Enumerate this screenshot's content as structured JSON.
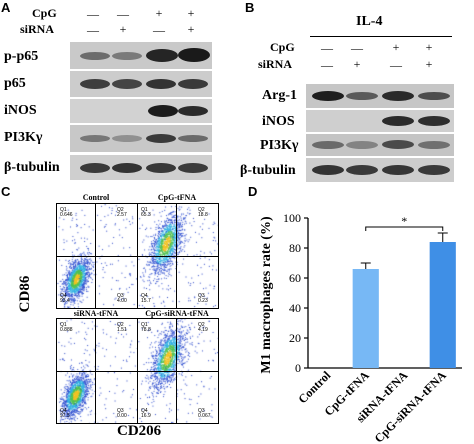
{
  "panels": {
    "a": "A",
    "b": "B",
    "c": "C",
    "d": "D"
  },
  "panel_a": {
    "conditions": [
      {
        "label": "CpG",
        "values": [
          "—",
          "—",
          "+",
          "+"
        ]
      },
      {
        "label": "siRNA",
        "values": [
          "—",
          "+",
          "—",
          "+"
        ]
      }
    ],
    "blots": [
      "p-p65",
      "p65",
      "iNOS",
      "PI3Kγ",
      "β-tubulin"
    ]
  },
  "panel_b": {
    "title": "IL-4",
    "conditions": [
      {
        "label": "CpG",
        "values": [
          "—",
          "—",
          "+",
          "+"
        ]
      },
      {
        "label": "siRNA",
        "values": [
          "—",
          "+",
          "—",
          "+"
        ]
      }
    ],
    "blots": [
      "Arg-1",
      "iNOS",
      "PI3Kγ",
      "β-tubulin"
    ]
  },
  "panel_c": {
    "y_axis": "CD86",
    "x_axis": "CD206",
    "plots": [
      {
        "title": "Control",
        "q1": "Q1",
        "q1v": "0.646",
        "q2": "Q2",
        "q2v": "2.57",
        "q3": "Q3",
        "q3v": "4.00",
        "q4": "Q4",
        "q4v": "93.4"
      },
      {
        "title": "CpG-tFNA",
        "q1": "Q1",
        "q1v": "65.3",
        "q2": "Q2",
        "q2v": "18.8",
        "q3": "Q3",
        "q3v": "0.23",
        "q4": "Q4",
        "q4v": "15.7"
      },
      {
        "title": "siRNA-tFNA",
        "q1": "Q1",
        "q1v": "0.888",
        "q2": "Q2",
        "q2v": "1.51",
        "q3": "Q3",
        "q3v": "0.00",
        "q4": "Q4",
        "q4v": "97.5"
      },
      {
        "title": "CpG-siRNA-tFNA",
        "q1": "Q1",
        "q1v": "78.8",
        "q2": "Q2",
        "q2v": "4.19",
        "q3": "Q3",
        "q3v": "0.067",
        "q4": "Q4",
        "q4v": "16.9"
      }
    ]
  },
  "chart_data": {
    "type": "bar",
    "ylabel": "M1 macrophages rate (%)",
    "categories": [
      "Control",
      "CpG-tFNA",
      "siRNA-tFNA",
      "CpG-siRNA-tFNA"
    ],
    "values": [
      0,
      66,
      0,
      84
    ],
    "errors": [
      0,
      4,
      0,
      6
    ],
    "ylim": [
      0,
      100
    ],
    "yticks": [
      "0",
      "20",
      "40",
      "60",
      "80",
      "100"
    ],
    "significance": {
      "between": [
        1,
        3
      ],
      "label": "*"
    },
    "colors": [
      "#77b8f5",
      "#77b8f5",
      "#3f8fe6",
      "#3f8fe6"
    ]
  }
}
